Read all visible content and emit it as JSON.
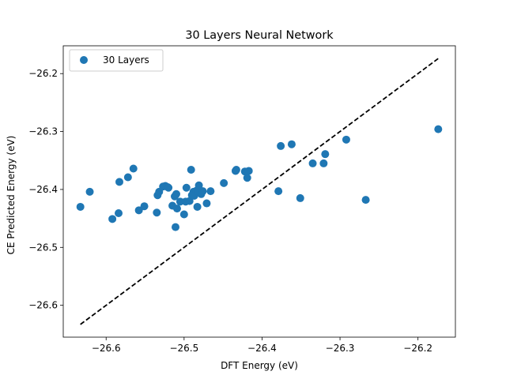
{
  "chart_data": {
    "type": "scatter",
    "title": "30 Layers Neural Network",
    "xlabel": "DFT Energy (eV)",
    "ylabel": "CE Predicted Energy (eV)",
    "xlim": [
      -26.655,
      -26.152
    ],
    "ylim": [
      -26.655,
      -26.152
    ],
    "xticks": [
      -26.6,
      -26.5,
      -26.4,
      -26.3,
      -26.2
    ],
    "yticks": [
      -26.6,
      -26.5,
      -26.4,
      -26.3,
      -26.2
    ],
    "xtick_labels": [
      "−26.6",
      "−26.5",
      "−26.4",
      "−26.3",
      "−26.2"
    ],
    "ytick_labels": [
      "−26.6",
      "−26.5",
      "−26.4",
      "−26.3",
      "−26.2"
    ],
    "grid": false,
    "legend": {
      "position": "top-left",
      "entries": [
        "30 Layers"
      ]
    },
    "series": [
      {
        "name": "30 Layers",
        "color": "#1f77b4",
        "x": [
          -26.633,
          -26.621,
          -26.592,
          -26.584,
          -26.583,
          -26.572,
          -26.565,
          -26.558,
          -26.551,
          -26.535,
          -26.534,
          -26.532,
          -26.527,
          -26.524,
          -26.521,
          -26.52,
          -26.515,
          -26.512,
          -26.511,
          -26.51,
          -26.509,
          -26.505,
          -26.5,
          -26.498,
          -26.497,
          -26.493,
          -26.491,
          -26.49,
          -26.488,
          -26.487,
          -26.484,
          -26.483,
          -26.482,
          -26.481,
          -26.478,
          -26.476,
          -26.471,
          -26.466,
          -26.449,
          -26.434,
          -26.433,
          -26.422,
          -26.419,
          -26.417,
          -26.379,
          -26.376,
          -26.362,
          -26.351,
          -26.335,
          -26.321,
          -26.319,
          -26.292,
          -26.267,
          -26.174
        ],
        "y": [
          -26.43,
          -26.404,
          -26.451,
          -26.441,
          -26.387,
          -26.379,
          -26.364,
          -26.436,
          -26.429,
          -26.44,
          -26.41,
          -26.404,
          -26.395,
          -26.394,
          -26.396,
          -26.397,
          -26.428,
          -26.412,
          -26.465,
          -26.408,
          -26.433,
          -26.421,
          -26.443,
          -26.421,
          -26.397,
          -26.42,
          -26.366,
          -26.41,
          -26.404,
          -26.411,
          -26.402,
          -26.43,
          -26.401,
          -26.393,
          -26.408,
          -26.403,
          -26.424,
          -26.403,
          -26.389,
          -26.368,
          -26.366,
          -26.369,
          -26.38,
          -26.368,
          -26.403,
          -26.325,
          -26.322,
          -26.415,
          -26.355,
          -26.355,
          -26.339,
          -26.314,
          -26.418,
          -26.296
        ]
      }
    ],
    "reference_line": {
      "style": "dashed",
      "color": "#000000",
      "from": [
        -26.633,
        -26.633
      ],
      "to": [
        -26.174,
        -26.174
      ]
    }
  }
}
